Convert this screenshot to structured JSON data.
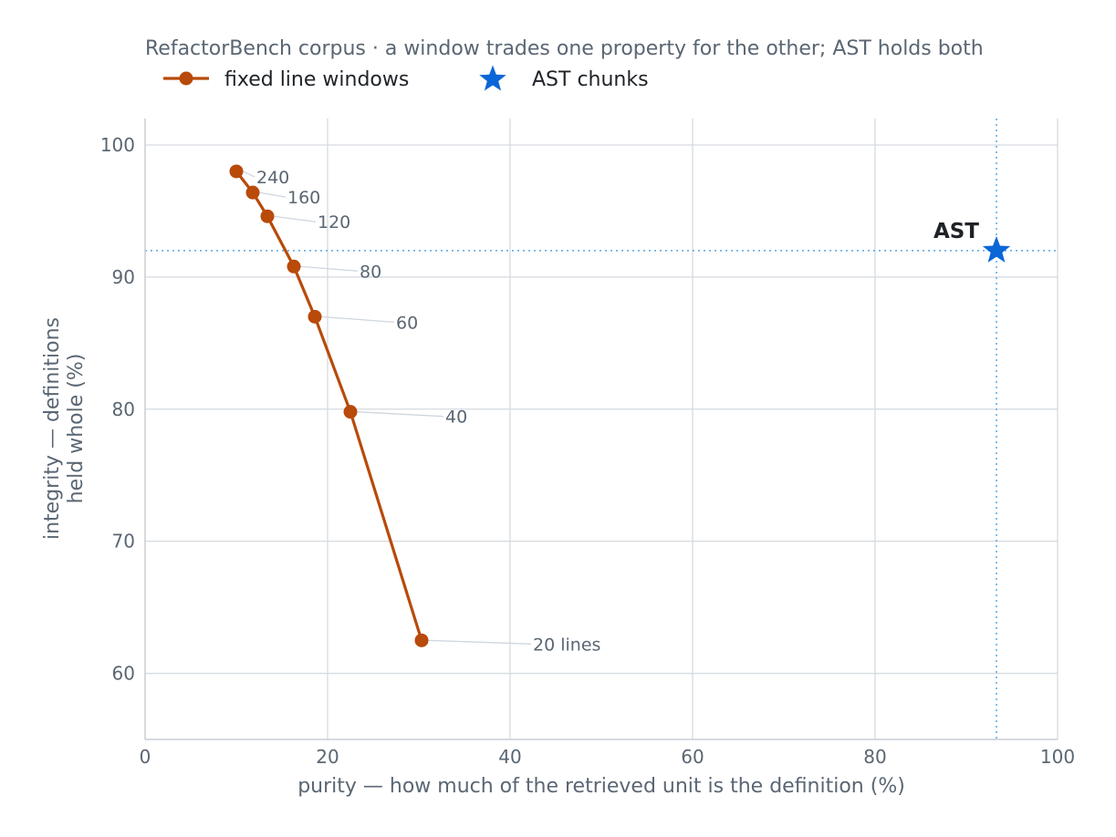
{
  "chart_data": {
    "type": "line",
    "title": "RefactorBench corpus · a window trades one property for the other; AST holds both",
    "xlabel": "purity — how much of the retrieved unit is the definition (%)",
    "ylabel_lines": [
      "integrity — definitions",
      "held whole (%)"
    ],
    "xlim": [
      0,
      100
    ],
    "ylim": [
      55,
      102
    ],
    "xticks": [
      0,
      20,
      40,
      60,
      80,
      100
    ],
    "yticks": [
      60,
      70,
      80,
      90,
      100
    ],
    "grid": true,
    "legend_placement": "top-left",
    "series": [
      {
        "name": "fixed line windows",
        "marker": "circle",
        "color": "#b84a0a",
        "points": [
          {
            "x": 10.0,
            "y": 98.0,
            "label": "240"
          },
          {
            "x": 11.8,
            "y": 96.4,
            "label": "160"
          },
          {
            "x": 13.4,
            "y": 94.6,
            "label": "120"
          },
          {
            "x": 16.3,
            "y": 90.8,
            "label": "80"
          },
          {
            "x": 18.6,
            "y": 87.0,
            "label": "60"
          },
          {
            "x": 22.5,
            "y": 79.8,
            "label": "40"
          },
          {
            "x": 30.3,
            "y": 62.5,
            "label": "20 lines"
          }
        ]
      },
      {
        "name": "AST chunks",
        "marker": "star",
        "color": "#0b66d6",
        "points": [
          {
            "x": 93.3,
            "y": 92.0,
            "label": "AST"
          }
        ]
      }
    ]
  }
}
